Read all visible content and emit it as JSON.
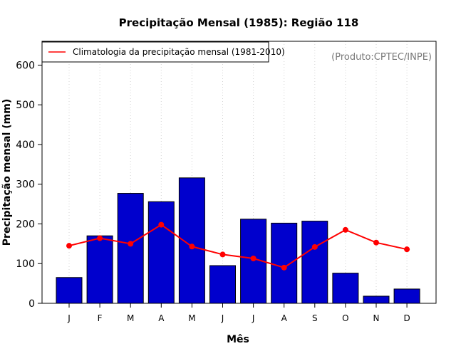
{
  "chart_data": {
    "type": "bar",
    "title": "Precipitação Mensal (1985): Região 118",
    "xlabel": "Mês",
    "ylabel": "Precipitação mensal (mm)",
    "categories": [
      "J",
      "F",
      "M",
      "A",
      "M",
      "J",
      "J",
      "A",
      "S",
      "O",
      "N",
      "D"
    ],
    "yticks": [
      0,
      100,
      200,
      300,
      400,
      500,
      600
    ],
    "ylim": [
      0,
      660
    ],
    "grid": "vertical-dotted",
    "series": [
      {
        "name": "Precipitação mensal 1985",
        "type": "bar",
        "color": "#0000cd",
        "values": [
          65,
          170,
          277,
          256,
          316,
          95,
          212,
          202,
          207,
          76,
          18,
          36
        ]
      },
      {
        "name": "Climatologia da precipitação mensal (1981-2010)",
        "type": "line",
        "color": "#ff0000",
        "values": [
          145,
          164,
          150,
          198,
          143,
          123,
          113,
          90,
          142,
          185,
          153,
          136
        ]
      }
    ],
    "legend": {
      "position": "top-left",
      "entries": [
        "Climatologia da precipitação mensal (1981-2010)"
      ]
    },
    "annotation": "(Produto:CPTEC/INPE)"
  }
}
